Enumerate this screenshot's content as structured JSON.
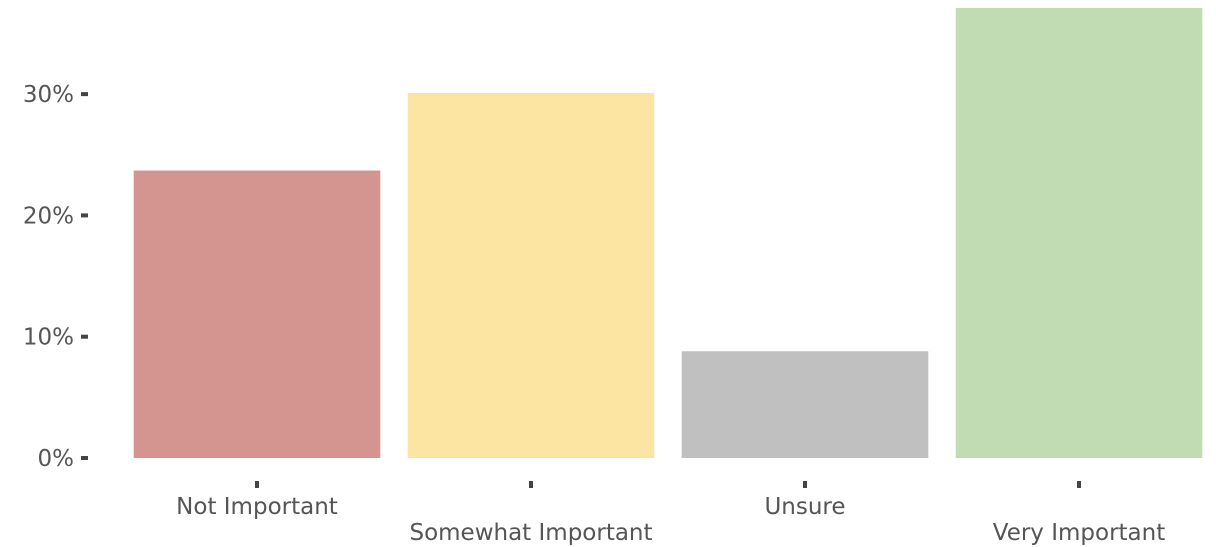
{
  "chart_data": {
    "type": "bar",
    "title": "",
    "xlabel": "",
    "ylabel": "",
    "categories": [
      "Not Important",
      "Somewhat Important",
      "Unsure",
      "Very Important"
    ],
    "values": [
      23.7,
      30.1,
      8.8,
      37.1
    ],
    "colors": [
      "#d49591",
      "#fce5a3",
      "#c0c0c0",
      "#c1dcb2"
    ],
    "ylim": [
      0,
      37.1
    ],
    "yticks": [
      0,
      10,
      20,
      30
    ],
    "ytick_labels": [
      "0%",
      "10%",
      "20%",
      "30%"
    ],
    "grid": false,
    "legend": "none"
  }
}
